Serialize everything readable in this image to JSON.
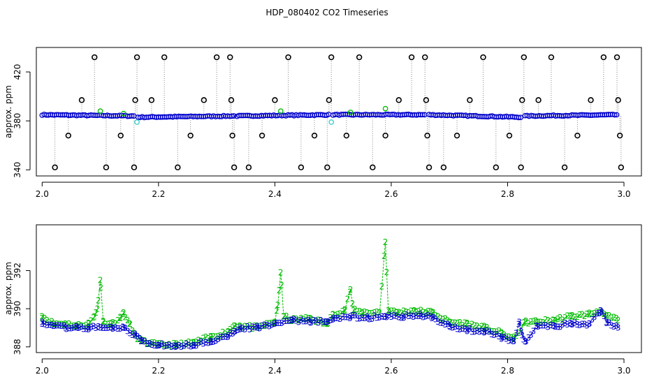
{
  "title": "HDP_080402  CO2 Timeseries",
  "chart_data": [
    {
      "type": "scatter",
      "title": "",
      "xlabel": "",
      "ylabel": "approx. ppm",
      "xlim": [
        1.99,
        3.03
      ],
      "ylim": [
        335,
        440
      ],
      "x_ticks": [
        2.0,
        2.2,
        2.4,
        2.6,
        2.8,
        3.0
      ],
      "x_tick_labels": [
        "2.0",
        "2.2",
        "2.4",
        "2.6",
        "2.8",
        "3.0"
      ],
      "y_ticks": [
        340,
        380,
        420
      ],
      "y_tick_labels": [
        "340",
        "380",
        "420"
      ],
      "series": [
        {
          "marker": "o",
          "color": "#0000cc",
          "segments": [
            {
              "x_start": 2.0,
              "x_end": 2.16,
              "y_start": 385,
              "y_end": 384
            },
            {
              "x_start": 2.165,
              "x_end": 2.33,
              "y_start": 383,
              "y_end": 384
            },
            {
              "x_start": 2.335,
              "x_end": 2.495,
              "y_start": 384,
              "y_end": 385
            },
            {
              "x_start": 2.5,
              "x_end": 2.66,
              "y_start": 385,
              "y_end": 385
            },
            {
              "x_start": 2.665,
              "x_end": 2.825,
              "y_start": 385,
              "y_end": 383
            },
            {
              "x_start": 2.83,
              "x_end": 2.99,
              "y_start": 384,
              "y_end": 385
            }
          ]
        },
        {
          "marker": "o",
          "color": "#000000",
          "outliers": [
            {
              "x": 2.022,
              "y": 342
            },
            {
              "x": 2.045,
              "y": 368
            },
            {
              "x": 2.068,
              "y": 397
            },
            {
              "x": 2.09,
              "y": 432
            },
            {
              "x": 2.11,
              "y": 342
            },
            {
              "x": 2.135,
              "y": 368
            },
            {
              "x": 2.158,
              "y": 342
            },
            {
              "x": 2.16,
              "y": 397
            },
            {
              "x": 2.163,
              "y": 432
            },
            {
              "x": 2.188,
              "y": 397
            },
            {
              "x": 2.21,
              "y": 432
            },
            {
              "x": 2.233,
              "y": 342
            },
            {
              "x": 2.255,
              "y": 368
            },
            {
              "x": 2.278,
              "y": 397
            },
            {
              "x": 2.3,
              "y": 432
            },
            {
              "x": 2.323,
              "y": 432
            },
            {
              "x": 2.325,
              "y": 397
            },
            {
              "x": 2.327,
              "y": 368
            },
            {
              "x": 2.33,
              "y": 342
            },
            {
              "x": 2.355,
              "y": 342
            },
            {
              "x": 2.378,
              "y": 368
            },
            {
              "x": 2.4,
              "y": 397
            },
            {
              "x": 2.423,
              "y": 432
            },
            {
              "x": 2.445,
              "y": 342
            },
            {
              "x": 2.468,
              "y": 368
            },
            {
              "x": 2.49,
              "y": 342
            },
            {
              "x": 2.493,
              "y": 397
            },
            {
              "x": 2.497,
              "y": 432
            },
            {
              "x": 2.523,
              "y": 368
            },
            {
              "x": 2.545,
              "y": 432
            },
            {
              "x": 2.568,
              "y": 342
            },
            {
              "x": 2.59,
              "y": 368
            },
            {
              "x": 2.613,
              "y": 397
            },
            {
              "x": 2.635,
              "y": 432
            },
            {
              "x": 2.658,
              "y": 432
            },
            {
              "x": 2.66,
              "y": 397
            },
            {
              "x": 2.662,
              "y": 368
            },
            {
              "x": 2.665,
              "y": 342
            },
            {
              "x": 2.69,
              "y": 342
            },
            {
              "x": 2.713,
              "y": 368
            },
            {
              "x": 2.735,
              "y": 397
            },
            {
              "x": 2.758,
              "y": 432
            },
            {
              "x": 2.78,
              "y": 342
            },
            {
              "x": 2.803,
              "y": 368
            },
            {
              "x": 2.823,
              "y": 342
            },
            {
              "x": 2.825,
              "y": 397
            },
            {
              "x": 2.828,
              "y": 432
            },
            {
              "x": 2.853,
              "y": 397
            },
            {
              "x": 2.875,
              "y": 432
            },
            {
              "x": 2.898,
              "y": 342
            },
            {
              "x": 2.92,
              "y": 368
            },
            {
              "x": 2.943,
              "y": 397
            },
            {
              "x": 2.965,
              "y": 432
            },
            {
              "x": 2.988,
              "y": 432
            },
            {
              "x": 2.99,
              "y": 397
            },
            {
              "x": 2.993,
              "y": 368
            },
            {
              "x": 2.995,
              "y": 342
            }
          ]
        },
        {
          "marker": "o",
          "color": "#33cccc",
          "points": [
            {
              "x": 2.163,
              "y": 379
            },
            {
              "x": 2.497,
              "y": 379
            }
          ]
        },
        {
          "marker": "o",
          "color": "#00bb00",
          "points": [
            {
              "x": 2.1,
              "y": 388
            },
            {
              "x": 2.14,
              "y": 386
            },
            {
              "x": 2.41,
              "y": 388
            },
            {
              "x": 2.53,
              "y": 387
            },
            {
              "x": 2.59,
              "y": 390
            }
          ]
        }
      ]
    },
    {
      "type": "line",
      "title": "",
      "xlabel": "",
      "ylabel": "approx. ppm",
      "xlim": [
        1.99,
        3.03
      ],
      "ylim": [
        387.7,
        394.4
      ],
      "x_ticks": [
        2.0,
        2.2,
        2.4,
        2.6,
        2.8,
        3.0
      ],
      "x_tick_labels": [
        "2.0",
        "2.2",
        "2.4",
        "2.6",
        "2.8",
        "3.0"
      ],
      "y_ticks": [
        388,
        390,
        392
      ],
      "y_tick_labels": [
        "388",
        "390",
        "392"
      ],
      "series": [
        {
          "marker": "2",
          "color": "#00bb00",
          "x": [
            2.0,
            2.02,
            2.04,
            2.06,
            2.08,
            2.09,
            2.095,
            2.1,
            2.105,
            2.12,
            2.135,
            2.14,
            2.15,
            2.16,
            2.17,
            2.2,
            2.23,
            2.26,
            2.29,
            2.32,
            2.33,
            2.34,
            2.37,
            2.4,
            2.405,
            2.41,
            2.415,
            2.43,
            2.46,
            2.49,
            2.5,
            2.52,
            2.53,
            2.535,
            2.55,
            2.58,
            2.59,
            2.595,
            2.61,
            2.64,
            2.66,
            2.67,
            2.7,
            2.73,
            2.76,
            2.79,
            2.81,
            2.83,
            2.85,
            2.88,
            2.91,
            2.94,
            2.96,
            2.97,
            2.99
          ],
          "y": [
            389.6,
            389.2,
            389.2,
            389.1,
            389.2,
            389.6,
            390.0,
            391.5,
            389.3,
            389.2,
            389.5,
            389.8,
            389.2,
            388.6,
            388.3,
            388.1,
            388.1,
            388.2,
            388.5,
            388.8,
            389.1,
            389.1,
            389.0,
            389.3,
            390.2,
            391.9,
            389.6,
            389.4,
            389.5,
            389.2,
            389.7,
            389.9,
            391.0,
            389.9,
            389.8,
            389.8,
            393.5,
            389.9,
            389.8,
            389.9,
            389.8,
            389.8,
            389.3,
            389.2,
            389.0,
            388.7,
            388.4,
            389.3,
            389.3,
            389.4,
            389.6,
            389.7,
            389.9,
            389.6,
            389.4
          ]
        },
        {
          "marker": "3",
          "color": "#0000cc",
          "x": [
            2.0,
            2.02,
            2.04,
            2.06,
            2.08,
            2.1,
            2.12,
            2.14,
            2.16,
            2.17,
            2.2,
            2.23,
            2.26,
            2.29,
            2.32,
            2.33,
            2.34,
            2.37,
            2.4,
            2.43,
            2.46,
            2.49,
            2.5,
            2.53,
            2.56,
            2.59,
            2.62,
            2.65,
            2.67,
            2.7,
            2.73,
            2.76,
            2.79,
            2.81,
            2.82,
            2.825,
            2.83,
            2.85,
            2.88,
            2.91,
            2.94,
            2.96,
            2.97,
            2.99
          ],
          "y": [
            389.3,
            389.1,
            389.0,
            389.0,
            389.0,
            389.0,
            389.0,
            389.0,
            388.6,
            388.3,
            388.1,
            388.0,
            388.1,
            388.3,
            388.6,
            388.8,
            389.0,
            389.0,
            389.2,
            389.4,
            389.3,
            389.3,
            389.5,
            389.6,
            389.5,
            389.6,
            389.6,
            389.7,
            389.5,
            389.1,
            388.9,
            388.8,
            388.5,
            388.3,
            389.3,
            388.6,
            388.3,
            389.1,
            389.1,
            389.2,
            389.2,
            389.9,
            389.3,
            389.0
          ]
        }
      ]
    }
  ]
}
